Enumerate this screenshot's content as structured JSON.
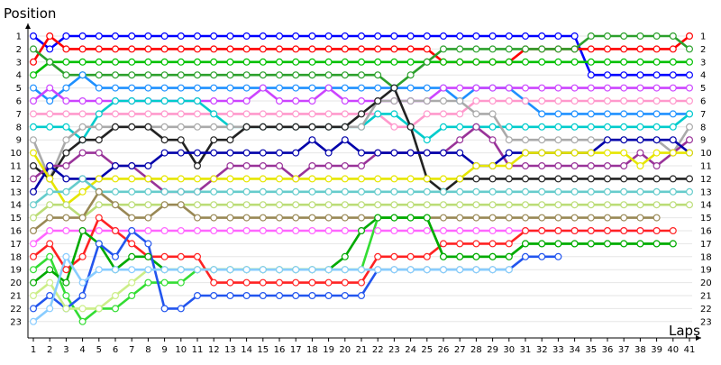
{
  "chart_data": {
    "type": "line",
    "title": "",
    "ylabel": "Position",
    "xlabel": "Laps",
    "x_ticks": [
      "1",
      "2",
      "3",
      "4",
      "5",
      "6",
      "7",
      "8",
      "9",
      "10",
      "11",
      "12",
      "13",
      "14",
      "15",
      "16",
      "17",
      "18",
      "19",
      "20",
      "21",
      "22",
      "23",
      "24",
      "25",
      "26",
      "27",
      "28",
      "29",
      "30",
      "31",
      "32",
      "33",
      "34",
      "35",
      "36",
      "37",
      "38",
      "39",
      "40",
      "41"
    ],
    "y_ticks": [
      "1",
      "2",
      "3",
      "4",
      "5",
      "6",
      "7",
      "8",
      "9",
      "10",
      "11",
      "12",
      "13",
      "14",
      "15",
      "16",
      "17",
      "18",
      "19",
      "20",
      "21",
      "22",
      "23"
    ],
    "xlim": [
      1,
      41
    ],
    "ylim": [
      1,
      23
    ],
    "y_inverted": true,
    "grid": true,
    "legend": "none",
    "series": [
      {
        "color": "#0000ff",
        "values": [
          1,
          2,
          1,
          1,
          1,
          1,
          1,
          1,
          1,
          1,
          1,
          1,
          1,
          1,
          1,
          1,
          1,
          1,
          1,
          1,
          1,
          1,
          1,
          1,
          1,
          1,
          1,
          1,
          1,
          1,
          1,
          1,
          1,
          1,
          4,
          4,
          4,
          4,
          4,
          4,
          4
        ]
      },
      {
        "color": "#ff0000",
        "values": [
          3,
          1,
          2,
          2,
          2,
          2,
          2,
          2,
          2,
          2,
          2,
          2,
          2,
          2,
          2,
          2,
          2,
          2,
          2,
          2,
          2,
          2,
          2,
          2,
          2,
          3,
          3,
          3,
          3,
          3,
          2,
          2,
          2,
          2,
          2,
          2,
          2,
          2,
          2,
          2,
          1
        ]
      },
      {
        "color": "#00c000",
        "values": [
          4,
          3,
          3,
          3,
          3,
          3,
          3,
          3,
          3,
          3,
          3,
          3,
          3,
          3,
          3,
          3,
          3,
          3,
          3,
          3,
          3,
          3,
          3,
          3,
          3,
          3,
          3,
          3,
          3,
          3,
          3,
          3,
          3,
          3,
          3,
          3,
          3,
          3,
          3,
          3,
          3
        ]
      },
      {
        "color": "#2ca02c",
        "values": [
          2,
          3,
          4,
          4,
          4,
          4,
          4,
          4,
          4,
          4,
          4,
          4,
          4,
          4,
          4,
          4,
          4,
          4,
          4,
          4,
          4,
          4,
          5,
          4,
          3,
          2,
          2,
          2,
          2,
          2,
          2,
          2,
          2,
          2,
          1,
          1,
          1,
          1,
          1,
          1,
          2
        ]
      },
      {
        "color": "#1e90ff",
        "values": [
          5,
          6,
          5,
          4,
          5,
          5,
          5,
          5,
          5,
          5,
          5,
          5,
          5,
          5,
          5,
          5,
          5,
          5,
          5,
          5,
          5,
          5,
          5,
          5,
          5,
          5,
          6,
          5,
          5,
          5,
          6,
          7,
          7,
          7,
          7,
          7,
          7,
          7,
          7,
          7,
          7
        ]
      },
      {
        "color": "#cc44ff",
        "values": [
          6,
          5,
          6,
          6,
          6,
          6,
          6,
          6,
          6,
          6,
          6,
          6,
          6,
          6,
          5,
          6,
          6,
          6,
          5,
          6,
          6,
          6,
          6,
          6,
          6,
          5,
          5,
          5,
          5,
          5,
          5,
          5,
          5,
          5,
          5,
          5,
          5,
          5,
          5,
          5,
          5
        ]
      },
      {
        "color": "#ff99cc",
        "values": [
          7,
          7,
          7,
          7,
          7,
          7,
          7,
          7,
          7,
          7,
          7,
          7,
          7,
          7,
          7,
          7,
          7,
          7,
          7,
          7,
          7,
          7,
          8,
          8,
          7,
          7,
          7,
          6,
          6,
          6,
          6,
          6,
          6,
          6,
          6,
          6,
          6,
          6,
          6,
          6,
          6
        ]
      },
      {
        "color": "#00cccc",
        "values": [
          8,
          8,
          8,
          9,
          7,
          6,
          6,
          6,
          6,
          6,
          6,
          7,
          8,
          8,
          8,
          8,
          8,
          8,
          8,
          8,
          8,
          7,
          7,
          8,
          9,
          8,
          8,
          8,
          8,
          8,
          8,
          8,
          8,
          8,
          8,
          8,
          8,
          8,
          8,
          8,
          7
        ]
      },
      {
        "color": "#aaaaaa",
        "values": [
          9,
          12,
          9,
          8,
          8,
          8,
          8,
          8,
          8,
          8,
          8,
          8,
          8,
          8,
          8,
          8,
          8,
          8,
          8,
          8,
          8,
          6,
          6,
          6,
          6,
          6,
          6,
          7,
          7,
          9,
          9,
          9,
          9,
          9,
          9,
          9,
          9,
          9,
          9,
          10,
          8
        ]
      },
      {
        "color": "#222222",
        "values": [
          11,
          12,
          10,
          9,
          9,
          8,
          8,
          8,
          9,
          9,
          11,
          9,
          9,
          8,
          8,
          8,
          8,
          8,
          8,
          8,
          7,
          6,
          5,
          8,
          12,
          13,
          12,
          12,
          12,
          12,
          12,
          12,
          12,
          12,
          12,
          12,
          12,
          12,
          12,
          12,
          12
        ]
      },
      {
        "color": "#993399",
        "values": [
          12,
          11,
          11,
          10,
          10,
          11,
          11,
          12,
          13,
          13,
          13,
          12,
          11,
          11,
          11,
          11,
          12,
          11,
          11,
          11,
          11,
          10,
          10,
          10,
          10,
          10,
          9,
          8,
          9,
          11,
          11,
          11,
          11,
          11,
          11,
          11,
          11,
          10,
          11,
          10,
          9
        ]
      },
      {
        "color": "#0000aa",
        "values": [
          13,
          11,
          12,
          12,
          12,
          11,
          11,
          11,
          10,
          10,
          10,
          10,
          10,
          10,
          10,
          10,
          10,
          9,
          10,
          9,
          10,
          10,
          10,
          10,
          10,
          10,
          10,
          11,
          11,
          10,
          10,
          10,
          10,
          10,
          10,
          9,
          9,
          9,
          9,
          9,
          10
        ]
      },
      {
        "color": "#e6e600",
        "values": [
          10,
          12,
          14,
          13,
          12,
          12,
          12,
          12,
          12,
          12,
          12,
          12,
          12,
          12,
          12,
          12,
          12,
          12,
          12,
          12,
          12,
          12,
          12,
          12,
          12,
          12,
          12,
          11,
          11,
          11,
          10,
          10,
          10,
          10,
          10,
          10,
          10,
          11,
          10,
          10,
          10
        ]
      },
      {
        "color": "#66cccc",
        "values": [
          14,
          13,
          13,
          12,
          13,
          13,
          13,
          13,
          13,
          13,
          13,
          13,
          13,
          13,
          13,
          13,
          13,
          13,
          13,
          13,
          13,
          13,
          13,
          13,
          13,
          13,
          13,
          13,
          13,
          13,
          13,
          13,
          13,
          13,
          13,
          13,
          13,
          13,
          13,
          13,
          13
        ]
      },
      {
        "color": "#bbdd77",
        "values": [
          15,
          14,
          14,
          15,
          14,
          14,
          14,
          14,
          14,
          14,
          14,
          14,
          14,
          14,
          14,
          14,
          14,
          14,
          14,
          14,
          14,
          14,
          14,
          14,
          14,
          14,
          14,
          14,
          14,
          14,
          14,
          14,
          14,
          14,
          14,
          14,
          14,
          14,
          14,
          14,
          14
        ]
      },
      {
        "color": "#998855",
        "values": [
          16,
          15,
          15,
          15,
          13,
          14,
          15,
          15,
          14,
          14,
          15,
          15,
          15,
          15,
          15,
          15,
          15,
          15,
          15,
          15,
          15,
          15,
          15,
          15,
          15,
          15,
          15,
          15,
          15,
          15,
          15,
          15,
          15,
          15,
          15,
          15,
          15,
          15,
          15
        ]
      },
      {
        "color": "#ff66ff",
        "values": [
          17,
          16,
          16,
          16,
          16,
          16,
          16,
          16,
          16,
          16,
          16,
          16,
          16,
          16,
          16,
          16,
          16,
          16,
          16,
          16,
          16,
          16,
          16,
          16,
          16,
          16,
          16,
          16,
          16,
          16,
          16,
          16,
          16,
          16,
          16,
          16,
          16,
          16,
          16
        ]
      },
      {
        "color": "#ff2222",
        "values": [
          18,
          17,
          19,
          18,
          15,
          16,
          17,
          18,
          18,
          18,
          18,
          20,
          20,
          20,
          20,
          20,
          20,
          20,
          20,
          20,
          20,
          18,
          18,
          18,
          18,
          17,
          17,
          17,
          17,
          17,
          16,
          16,
          16,
          16,
          16,
          16,
          16,
          16,
          16,
          16
        ]
      },
      {
        "color": "#33dd33",
        "values": [
          19,
          18,
          21,
          23,
          22,
          22,
          21,
          20,
          20,
          20,
          19,
          19,
          19,
          19,
          19,
          19,
          19,
          19,
          19,
          19,
          19,
          15,
          15,
          15,
          15,
          18,
          18,
          18,
          18,
          18,
          17,
          17,
          17,
          17,
          17,
          17,
          17,
          17,
          17,
          17
        ]
      },
      {
        "color": "#00aa00",
        "values": [
          20,
          19,
          20,
          16,
          17,
          19,
          18,
          18,
          19,
          19,
          19,
          19,
          19,
          19,
          19,
          19,
          19,
          19,
          19,
          18,
          16,
          15,
          15,
          15,
          15,
          18,
          18,
          18,
          18,
          18,
          17,
          17,
          17,
          17,
          17,
          17,
          17,
          17,
          17,
          17
        ]
      },
      {
        "color": "#2255ee",
        "values": [
          22,
          21,
          22,
          21,
          17,
          18,
          16,
          17,
          22,
          22,
          21,
          21,
          21,
          21,
          21,
          21,
          21,
          21,
          21,
          21,
          21,
          19,
          19,
          19,
          19,
          19,
          19,
          19,
          19,
          19,
          18,
          18,
          18
        ]
      },
      {
        "color": "#ccee88",
        "values": [
          21,
          20,
          22,
          22,
          22,
          21,
          20,
          19,
          19,
          19,
          19,
          19,
          19,
          19,
          19,
          19,
          19,
          19,
          19,
          19,
          19,
          19,
          19,
          19,
          19,
          19,
          19,
          19,
          19,
          19
        ]
      },
      {
        "color": "#88ccff",
        "values": [
          23,
          22,
          18,
          20,
          19,
          19,
          19,
          19,
          19,
          19,
          19,
          19,
          19,
          19,
          19,
          19,
          19,
          19,
          19,
          19,
          19,
          19,
          19,
          19,
          19,
          19,
          19,
          19,
          19,
          19
        ]
      }
    ]
  }
}
